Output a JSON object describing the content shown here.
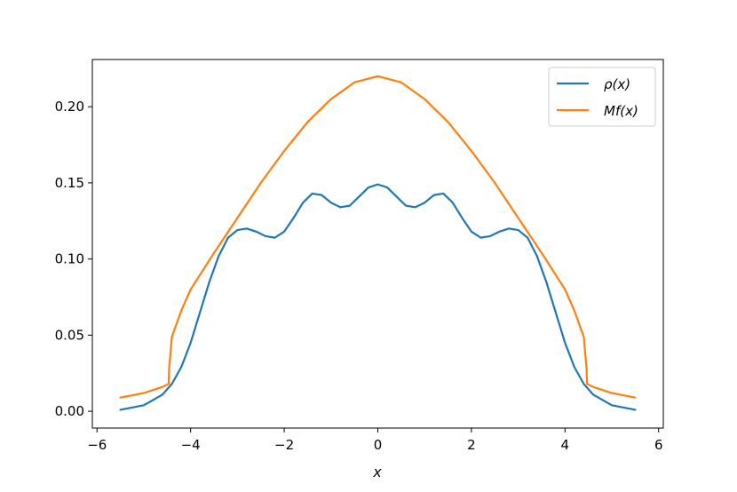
{
  "chart_data": {
    "type": "line",
    "title": "",
    "xlabel": "x",
    "ylabel": "",
    "xlim": [
      -6.1,
      6.1
    ],
    "ylim": [
      -0.011,
      0.231
    ],
    "xticks": [
      -6,
      -4,
      -2,
      0,
      2,
      4,
      6
    ],
    "xtick_labels": [
      "−6",
      "−4",
      "−2",
      "0",
      "2",
      "4",
      "6"
    ],
    "yticks": [
      0.0,
      0.05,
      0.1,
      0.15,
      0.2
    ],
    "ytick_labels": [
      "0.00",
      "0.05",
      "0.10",
      "0.15",
      "0.20"
    ],
    "grid": false,
    "legend_position": "top-right",
    "series": [
      {
        "name": "ρ(x)",
        "color": "#1f77b4",
        "x": [
          -5.5,
          -5.0,
          -4.6,
          -4.4,
          -4.2,
          -4.0,
          -3.8,
          -3.6,
          -3.4,
          -3.2,
          -3.0,
          -2.8,
          -2.6,
          -2.4,
          -2.2,
          -2.0,
          -1.8,
          -1.6,
          -1.4,
          -1.2,
          -1.0,
          -0.8,
          -0.6,
          -0.4,
          -0.2,
          0.0,
          0.2,
          0.4,
          0.6,
          0.8,
          1.0,
          1.2,
          1.4,
          1.6,
          1.8,
          2.0,
          2.2,
          2.4,
          2.6,
          2.8,
          3.0,
          3.2,
          3.4,
          3.6,
          3.8,
          4.0,
          4.2,
          4.4,
          4.6,
          5.0,
          5.5
        ],
        "y": [
          0.001,
          0.004,
          0.011,
          0.018,
          0.029,
          0.045,
          0.065,
          0.085,
          0.102,
          0.114,
          0.119,
          0.12,
          0.118,
          0.115,
          0.114,
          0.118,
          0.127,
          0.137,
          0.143,
          0.142,
          0.137,
          0.134,
          0.135,
          0.141,
          0.147,
          0.149,
          0.147,
          0.141,
          0.135,
          0.134,
          0.137,
          0.142,
          0.143,
          0.137,
          0.127,
          0.118,
          0.114,
          0.115,
          0.118,
          0.12,
          0.119,
          0.114,
          0.102,
          0.085,
          0.065,
          0.045,
          0.029,
          0.018,
          0.011,
          0.004,
          0.001
        ]
      },
      {
        "name": "Mf(x)",
        "color": "#ff7f0e",
        "x": [
          -5.5,
          -5.0,
          -4.6,
          -4.47,
          -4.46,
          -4.4,
          -4.2,
          -4.0,
          -3.5,
          -3.0,
          -2.5,
          -2.0,
          -1.5,
          -1.0,
          -0.5,
          0.0,
          0.5,
          1.0,
          1.5,
          2.0,
          2.5,
          3.0,
          3.5,
          4.0,
          4.2,
          4.4,
          4.46,
          4.47,
          4.6,
          5.0,
          5.5
        ],
        "y": [
          0.009,
          0.012,
          0.016,
          0.018,
          0.028,
          0.049,
          0.066,
          0.08,
          0.104,
          0.127,
          0.15,
          0.171,
          0.19,
          0.205,
          0.216,
          0.22,
          0.216,
          0.205,
          0.19,
          0.171,
          0.15,
          0.127,
          0.104,
          0.08,
          0.066,
          0.049,
          0.028,
          0.018,
          0.016,
          0.012,
          0.009
        ]
      }
    ]
  }
}
